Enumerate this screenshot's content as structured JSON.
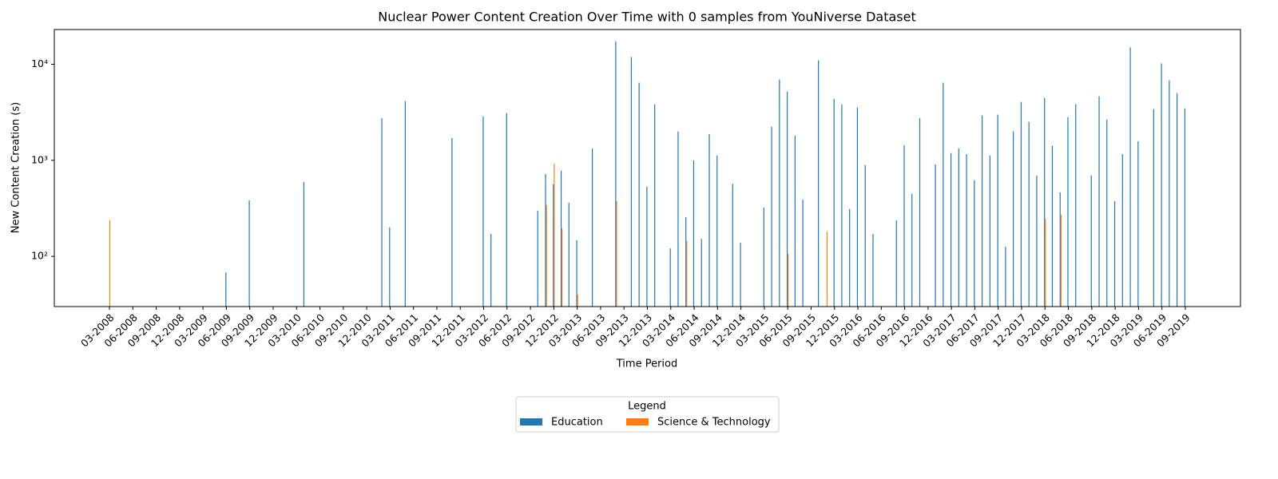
{
  "chart_data": {
    "type": "bar",
    "title": "Nuclear Power Content Creation Over Time with 0 samples from YouNiverse Dataset",
    "x_label": "Time Period",
    "y_label": "New Content Creation (s)",
    "legend_title": "Legend",
    "legend": "bottom",
    "log_y": true,
    "ylim": [
      30,
      23000
    ],
    "yticks": [
      {
        "value": 100,
        "label": "10²"
      },
      {
        "value": 1000,
        "label": "10³"
      },
      {
        "value": 10000,
        "label": "10⁴"
      }
    ],
    "categories": [
      "03-2008",
      null,
      null,
      "06-2008",
      null,
      null,
      "09-2008",
      null,
      null,
      "12-2008",
      null,
      null,
      "03-2009",
      null,
      null,
      "06-2009",
      null,
      null,
      "09-2009",
      null,
      null,
      "12-2009",
      null,
      null,
      "03-2010",
      null,
      null,
      "06-2010",
      null,
      null,
      "09-2010",
      null,
      null,
      "12-2010",
      null,
      null,
      "03-2011",
      null,
      null,
      "06-2011",
      null,
      null,
      "09-2011",
      null,
      null,
      "12-2011",
      null,
      null,
      "03-2012",
      null,
      null,
      "06-2012",
      null,
      null,
      "09-2012",
      null,
      null,
      "12-2012",
      null,
      null,
      "03-2013",
      null,
      null,
      "06-2013",
      null,
      null,
      "09-2013",
      null,
      null,
      "12-2013",
      null,
      null,
      "03-2014",
      null,
      null,
      "06-2014",
      null,
      null,
      "09-2014",
      null,
      null,
      "12-2014",
      null,
      null,
      "03-2015",
      null,
      null,
      "06-2015",
      null,
      null,
      "09-2015",
      null,
      null,
      "12-2015",
      null,
      null,
      "03-2016",
      null,
      null,
      "06-2016",
      null,
      null,
      "09-2016",
      null,
      null,
      "12-2016",
      null,
      null,
      "03-2017",
      null,
      null,
      "06-2017",
      null,
      null,
      "09-2017",
      null,
      null,
      "12-2017",
      null,
      null,
      "03-2018",
      null,
      null,
      "06-2018",
      null,
      null,
      "09-2018",
      null,
      null,
      "12-2018",
      null,
      null,
      "03-2019",
      null,
      null,
      "06-2019",
      null,
      null,
      "09-2019"
    ],
    "series": [
      {
        "name": "Education",
        "color": "#1f77b4",
        "values": [
          null,
          null,
          null,
          null,
          null,
          null,
          null,
          null,
          null,
          null,
          null,
          null,
          null,
          null,
          null,
          68,
          null,
          null,
          383,
          null,
          null,
          null,
          null,
          null,
          null,
          596,
          null,
          null,
          null,
          null,
          null,
          null,
          null,
          null,
          null,
          2750,
          200,
          null,
          4140,
          null,
          null,
          null,
          null,
          null,
          1710,
          null,
          null,
          null,
          2870,
          171,
          null,
          3100,
          null,
          null,
          null,
          299,
          721,
          562,
          780,
          362,
          147,
          null,
          1330,
          null,
          null,
          17400,
          null,
          11900,
          6430,
          531,
          3830,
          null,
          121,
          2000,
          256,
          1000,
          152,
          1880,
          1120,
          null,
          570,
          139,
          null,
          null,
          322,
          2240,
          6950,
          5210,
          1810,
          390,
          null,
          11000,
          null,
          4380,
          3830,
          310,
          3550,
          891,
          171,
          null,
          null,
          237,
          1440,
          447,
          2750,
          null,
          908,
          6430,
          1190,
          1330,
          1160,
          619,
          2930,
          1120,
          2990,
          126,
          2000,
          4060,
          2510,
          695,
          4470,
          1410,
          464,
          2820,
          3830,
          null,
          695,
          4640,
          2660,
          376,
          1160,
          14960,
          1580,
          null,
          3410,
          10200,
          6810,
          5010,
          3480
        ]
      },
      {
        "name": "Science & Technology",
        "color": "#ff7f0e",
        "values": [
          237,
          null,
          null,
          null,
          null,
          null,
          null,
          null,
          null,
          null,
          null,
          null,
          null,
          null,
          null,
          null,
          null,
          null,
          null,
          null,
          null,
          null,
          null,
          null,
          null,
          null,
          null,
          null,
          null,
          null,
          null,
          null,
          null,
          null,
          null,
          null,
          null,
          null,
          null,
          null,
          null,
          null,
          null,
          null,
          null,
          null,
          null,
          null,
          null,
          null,
          null,
          null,
          null,
          null,
          null,
          null,
          342,
          926,
          196,
          null,
          40,
          null,
          null,
          null,
          null,
          376,
          null,
          null,
          null,
          null,
          null,
          null,
          null,
          null,
          144,
          null,
          null,
          null,
          null,
          null,
          null,
          null,
          null,
          null,
          null,
          null,
          null,
          106,
          null,
          null,
          null,
          null,
          181,
          null,
          null,
          null,
          null,
          null,
          null,
          null,
          null,
          null,
          null,
          null,
          null,
          null,
          null,
          null,
          null,
          null,
          null,
          null,
          null,
          null,
          null,
          null,
          null,
          null,
          null,
          null,
          246,
          null,
          271,
          null,
          null,
          null,
          null,
          null,
          null,
          null,
          null,
          null,
          null,
          null,
          null,
          null,
          null,
          null,
          null
        ]
      }
    ]
  }
}
